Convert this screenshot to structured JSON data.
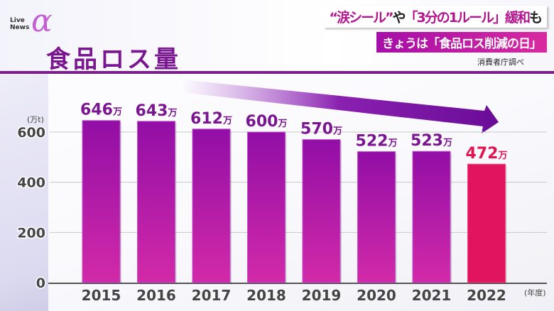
{
  "logo": {
    "line1": "Live",
    "line2": "News",
    "mark": "α"
  },
  "headlines": {
    "line1_a": "“涙シール”",
    "line1_b": "や",
    "line1_c": "「3分の1ルール」緩和",
    "line1_d": "も",
    "line2": "きょうは「食品ロス削減の日」"
  },
  "source": "消費者庁調べ",
  "chart_data": {
    "type": "bar",
    "title": "食品ロス量",
    "ylabel": "(万t)",
    "xlabel": "(年度)",
    "ylim": [
      0,
      650
    ],
    "yticks": [
      0,
      200,
      400,
      600
    ],
    "grid": true,
    "categories": [
      "2015",
      "2016",
      "2017",
      "2018",
      "2019",
      "2020",
      "2021",
      "2022"
    ],
    "values": [
      646,
      643,
      612,
      600,
      570,
      522,
      523,
      472
    ],
    "data_labels": [
      "646",
      "643",
      "612",
      "600",
      "570",
      "522",
      "523",
      "472"
    ],
    "data_label_unit": "万",
    "colors": {
      "bar": "#9a12a8",
      "bar_bottom": "#d22aa8",
      "highlight": "#e0145f",
      "label": "#7a1690",
      "highlight_label": "#e0144f"
    },
    "highlight_index": 7,
    "annotation": "downward-trend-arrow"
  }
}
